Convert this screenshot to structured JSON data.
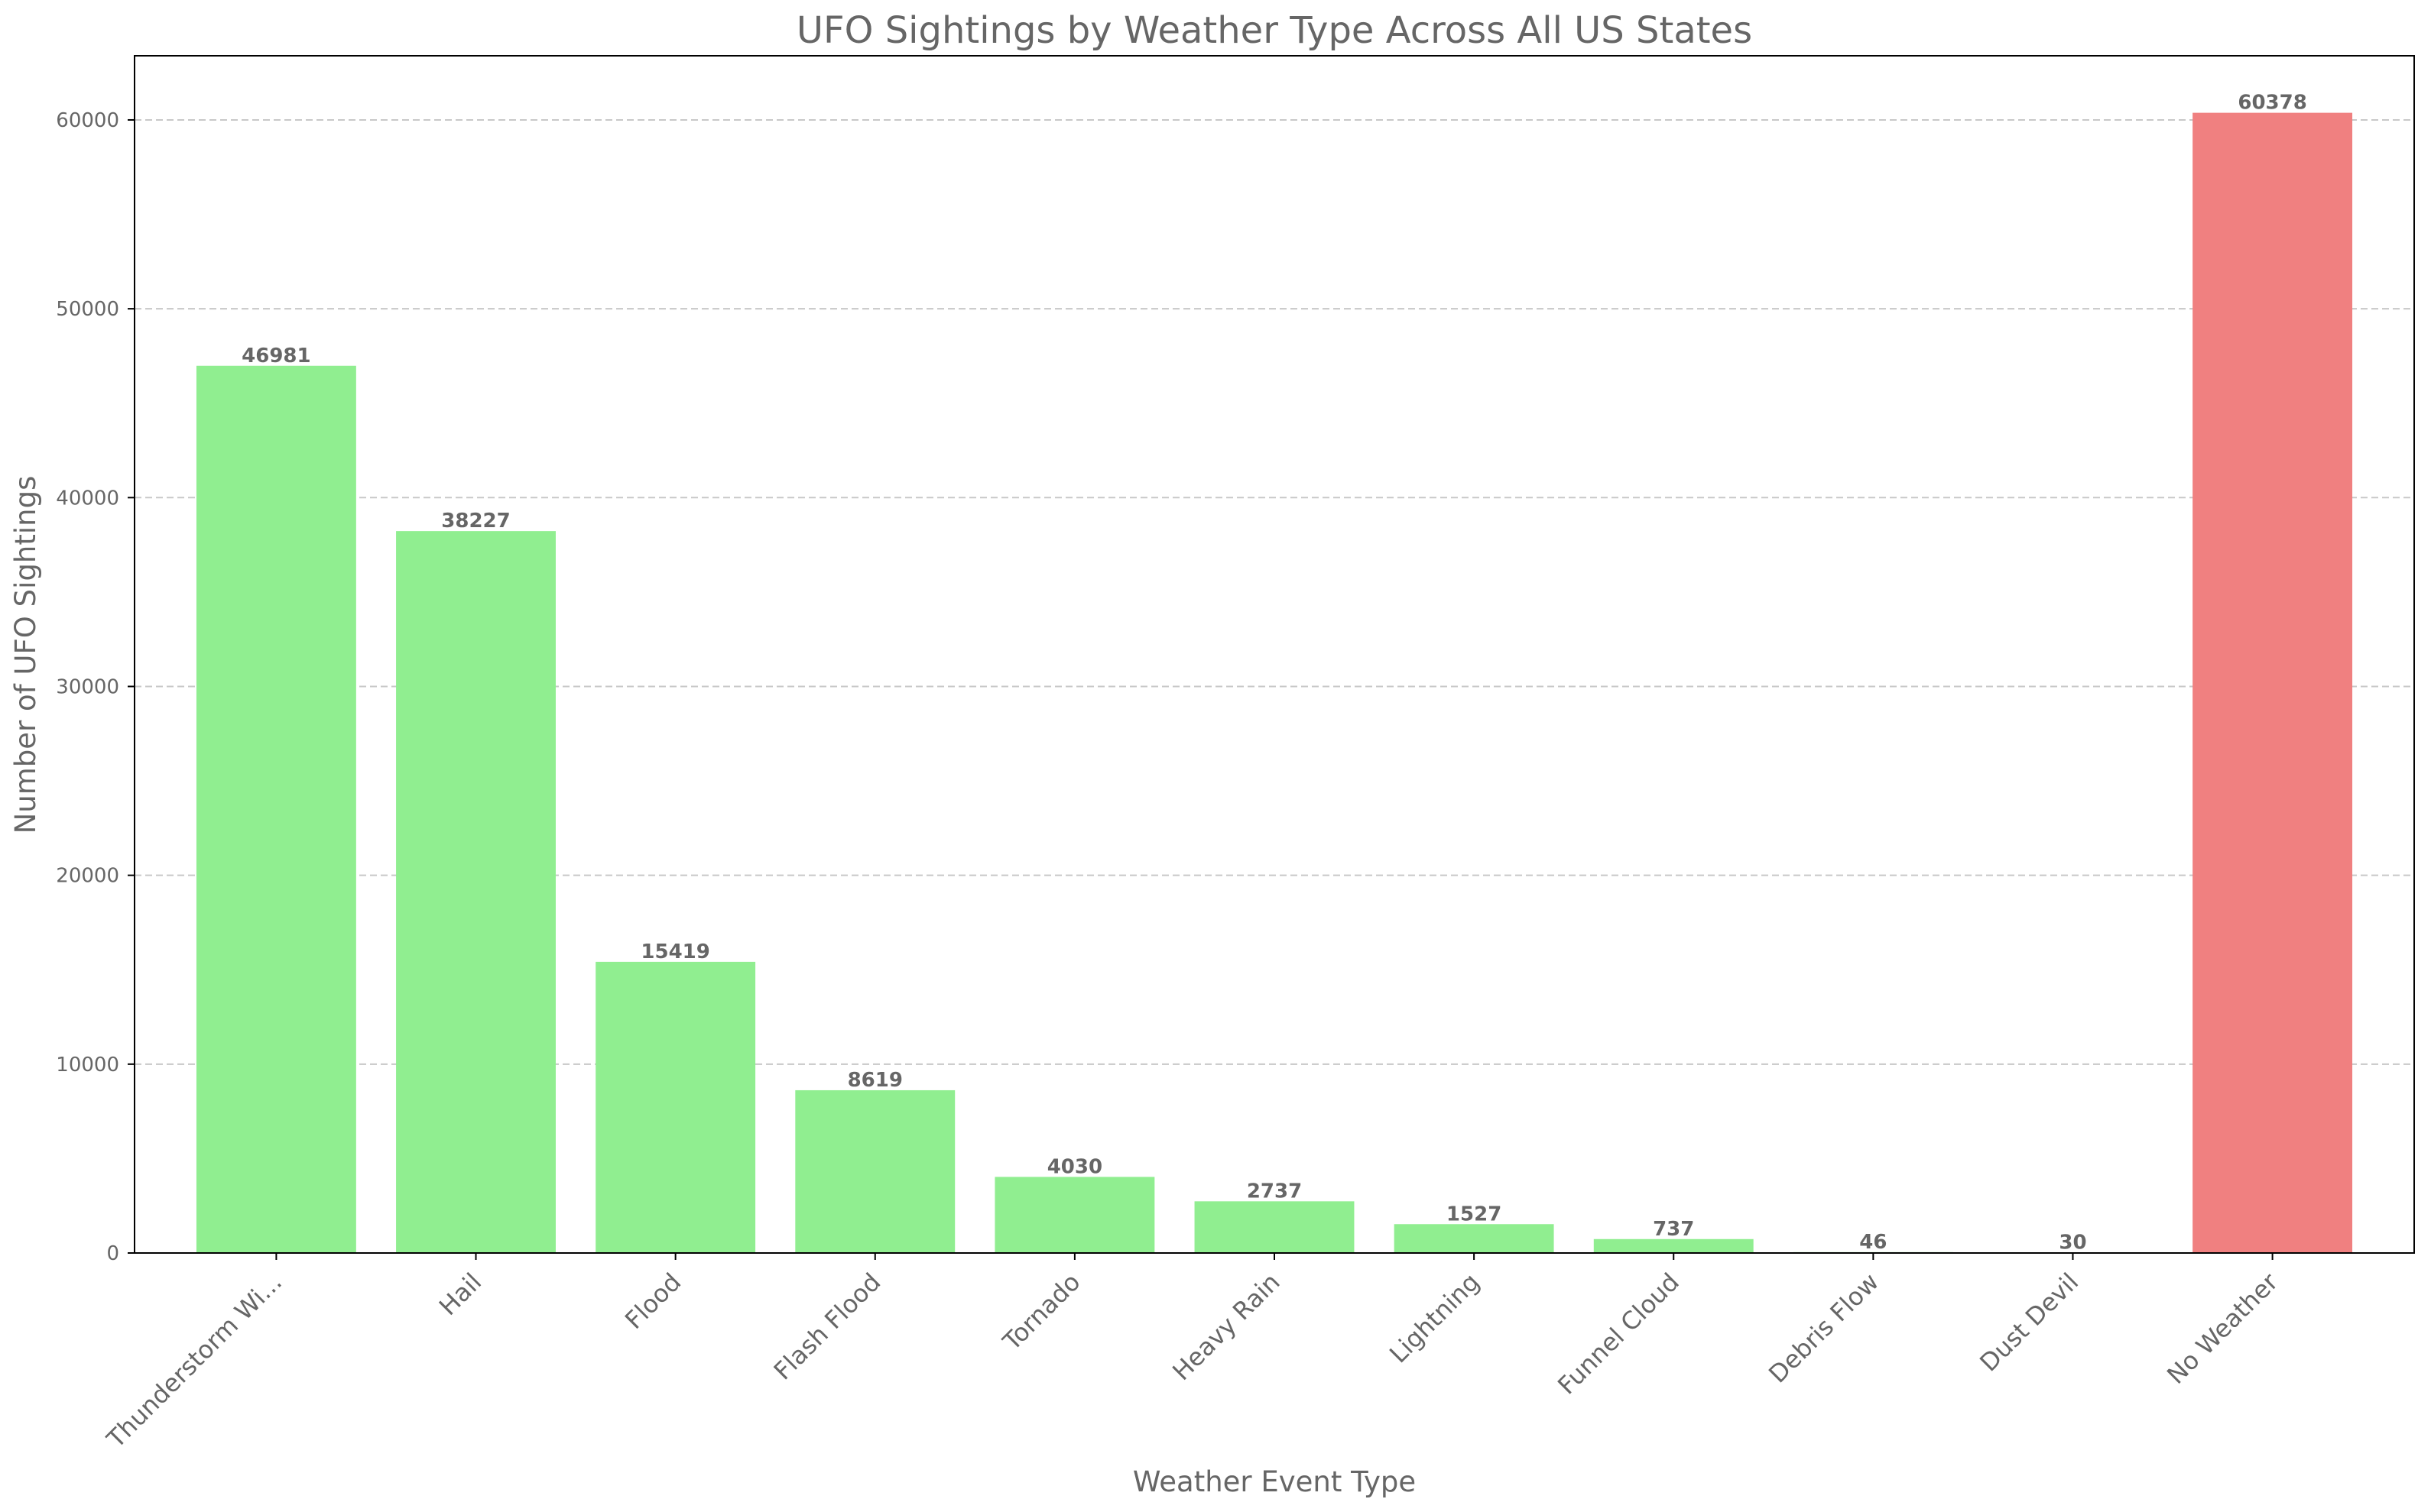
{
  "chart_data": {
    "type": "bar",
    "title": "UFO Sightings by Weather Type Across All US States",
    "xlabel": "Weather Event Type",
    "ylabel": "Number of UFO Sightings",
    "categories": [
      "Thunderstorm Wi...",
      "Hail",
      "Flood",
      "Flash Flood",
      "Tornado",
      "Heavy Rain",
      "Lightning",
      "Funnel Cloud",
      "Debris Flow",
      "Dust Devil",
      "No Weather"
    ],
    "values": [
      46981,
      38227,
      15419,
      8619,
      4030,
      2737,
      1527,
      737,
      46,
      30,
      60378
    ],
    "data_labels": [
      "46981",
      "38227",
      "15419",
      "8619",
      "4030",
      "2737",
      "1527",
      "737",
      "46",
      "30",
      "60378"
    ],
    "bar_colors": [
      "#90ee90",
      "#90ee90",
      "#90ee90",
      "#90ee90",
      "#90ee90",
      "#90ee90",
      "#90ee90",
      "#90ee90",
      "#90ee90",
      "#90ee90",
      "#f08080"
    ],
    "yticks": [
      0,
      10000,
      20000,
      30000,
      40000,
      50000,
      60000
    ],
    "ylim": [
      0,
      63397
    ],
    "grid": "y-dashed",
    "text_color": "#666666"
  }
}
